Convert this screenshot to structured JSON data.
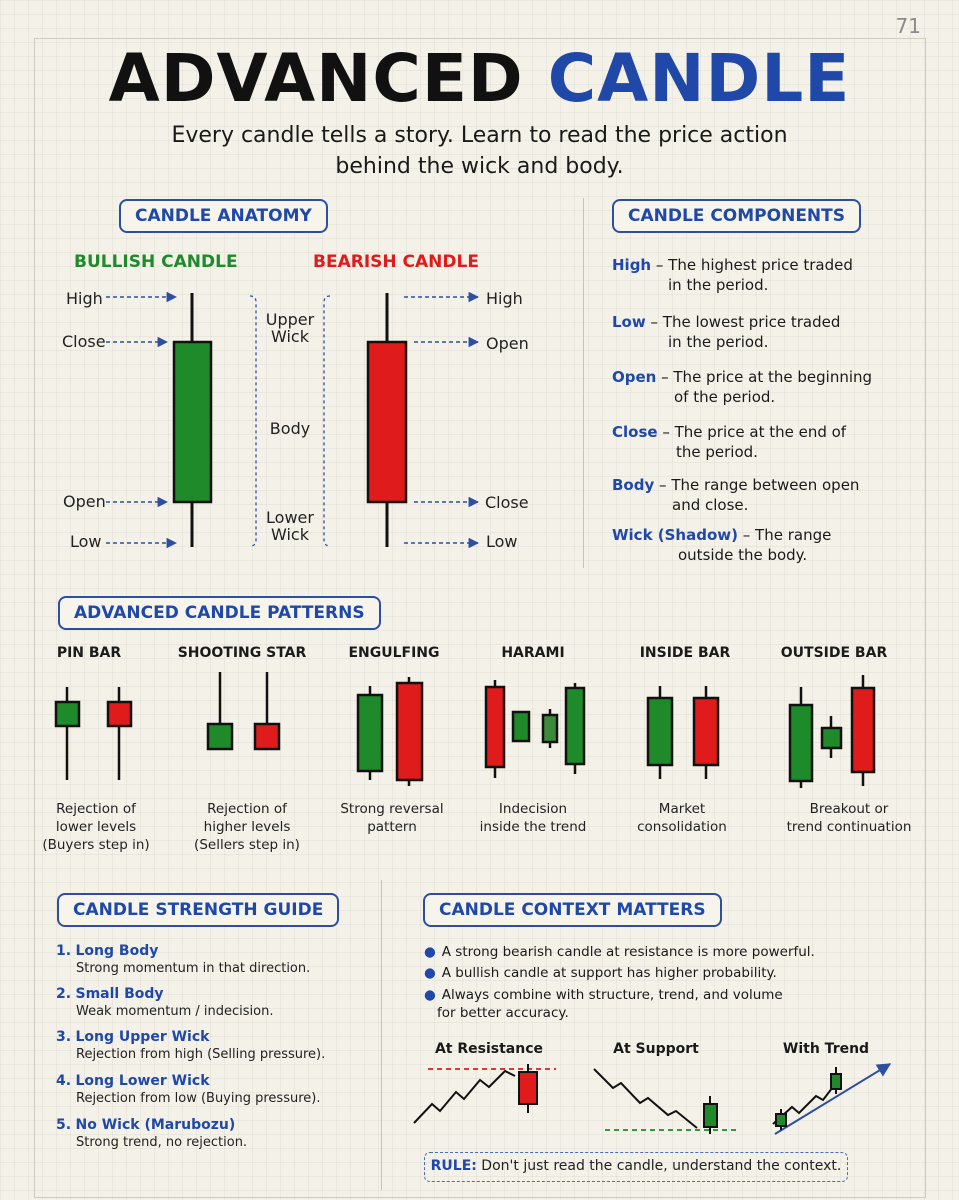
{
  "page_number": "71",
  "title": {
    "part1": "ADVANCED",
    "part2": "CANDLE"
  },
  "subtitle": {
    "line1": "Every candle tells a story. Learn to read the price action",
    "line2": "behind the wick and body."
  },
  "anatomy": {
    "header": "CANDLE ANATOMY",
    "bullish_title": "BULLISH CANDLE",
    "bearish_title": "BEARISH CANDLE",
    "bullish_labels": {
      "high": "High",
      "close": "Close",
      "open": "Open",
      "low": "Low"
    },
    "bearish_labels": {
      "high": "High",
      "open": "Open",
      "close": "Close",
      "low": "Low"
    },
    "middle": {
      "upper_1": "Upper",
      "upper_2": "Wick",
      "body": "Body",
      "lower_1": "Lower",
      "lower_2": "Wick"
    }
  },
  "components": {
    "header": "CANDLE COMPONENTS",
    "items": [
      {
        "key": "High",
        "line1": "– The highest price traded",
        "line2": "in the period."
      },
      {
        "key": "Low",
        "line1": "– The lowest price traded",
        "line2": "in the period."
      },
      {
        "key": "Open",
        "line1": "– The price at the beginning",
        "line2": "of the period."
      },
      {
        "key": "Close",
        "line1": "– The price at the end of",
        "line2": "the period."
      },
      {
        "key": "Body",
        "line1": "– The range between open",
        "line2": "and close."
      },
      {
        "key": "Wick (Shadow)",
        "line1": "– The range",
        "line2": "outside the body."
      }
    ]
  },
  "patterns": {
    "header": "ADVANCED CANDLE PATTERNS",
    "items": [
      {
        "title": "PIN BAR",
        "desc1": "Rejection of",
        "desc2": "lower levels",
        "desc3": "(Buyers step in)"
      },
      {
        "title": "SHOOTING STAR",
        "desc1": "Rejection of",
        "desc2": "higher levels",
        "desc3": "(Sellers step in)"
      },
      {
        "title": "ENGULFING",
        "desc1": "Strong reversal",
        "desc2": "pattern",
        "desc3": ""
      },
      {
        "title": "HARAMI",
        "desc1": "Indecision",
        "desc2": "inside the trend",
        "desc3": ""
      },
      {
        "title": "INSIDE BAR",
        "desc1": "Market",
        "desc2": "consolidation",
        "desc3": ""
      },
      {
        "title": "OUTSIDE BAR",
        "desc1": "Breakout or",
        "desc2": "trend continuation",
        "desc3": ""
      }
    ]
  },
  "strength": {
    "header": "CANDLE STRENGTH GUIDE",
    "items": [
      {
        "num": "1.",
        "title": "Long Body",
        "desc": "Strong momentum in that direction."
      },
      {
        "num": "2.",
        "title": "Small Body",
        "desc": "Weak momentum / indecision."
      },
      {
        "num": "3.",
        "title": "Long Upper Wick",
        "desc": "Rejection from high (Selling pressure)."
      },
      {
        "num": "4.",
        "title": "Long Lower Wick",
        "desc": "Rejection from low (Buying pressure)."
      },
      {
        "num": "5.",
        "title": "No Wick (Marubozu)",
        "desc": "Strong trend, no rejection."
      }
    ]
  },
  "context": {
    "header": "CANDLE CONTEXT MATTERS",
    "bullets": [
      {
        "line1": "A strong bearish candle at resistance is more powerful.",
        "line2": ""
      },
      {
        "line1": "A bullish candle at support has higher probability.",
        "line2": ""
      },
      {
        "line1": "Always combine with structure, trend, and volume",
        "line2": "for better accuracy."
      }
    ],
    "mini_titles": [
      "At Resistance",
      "At Support",
      "With Trend"
    ],
    "rule_key": "RULE:",
    "rule_text": " Don't just read the candle, understand the context."
  },
  "colors": {
    "accent": "#1f48a8",
    "bull": "#1e8a2a",
    "bear": "#e01b1b"
  }
}
